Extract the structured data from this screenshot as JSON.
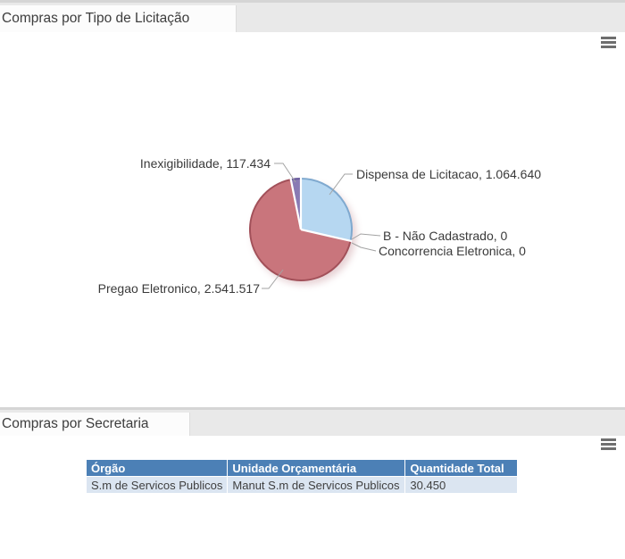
{
  "ui": {
    "tabs": [
      {
        "label": "Compras por Tipo de Licitação"
      },
      {
        "label": "Compras por Secretaria"
      }
    ],
    "menu_icon": "hamburger-menu-icon"
  },
  "colors": {
    "tab_bar_bg": "#e9e9e9",
    "tab_bg": "#fcfcfc",
    "panel_bg": "#ffffff",
    "table_header_bg": "#4c80b6",
    "table_header_text": "#ffffff",
    "table_row_bg": "#dbe5f1",
    "table_row_text": "#404040"
  },
  "chart_data": [
    {
      "type": "pie",
      "title": "Compras por Tipo de Licitação",
      "start_angle_deg": -90,
      "direction": "clockwise",
      "legend": "none",
      "label_style": "callout",
      "slices": [
        {
          "label": "Dispensa de Licitacao",
          "value": 1064640,
          "display": "Dispensa de Licitacao, 1.064.640",
          "color": "#b6d7f1",
          "stroke": "#7fa9cf"
        },
        {
          "label": "B - Não Cadastrado",
          "value": 0,
          "display": "B - Não Cadastrado, 0"
        },
        {
          "label": "Concorrencia Eletronica",
          "value": 0,
          "display": "Concorrencia Eletronica, 0"
        },
        {
          "label": "Pregao Eletronico",
          "value": 2541517,
          "display": "Pregao Eletronico, 2.541.517",
          "color": "#c9757c",
          "stroke": "#a25059"
        },
        {
          "label": "Inexigibilidade",
          "value": 117434,
          "display": "Inexigibilidade, 117.434",
          "color": "#897ab3",
          "stroke": "#67589b"
        }
      ]
    },
    {
      "type": "table",
      "title": "Compras por Secretaria",
      "columns": [
        "Órgão",
        "Unidade Orçamentária",
        "Quantidade Total"
      ],
      "rows": [
        [
          "S.m de Servicos Publicos",
          "Manut S.m de Servicos Publicos",
          "30.450"
        ]
      ]
    }
  ]
}
